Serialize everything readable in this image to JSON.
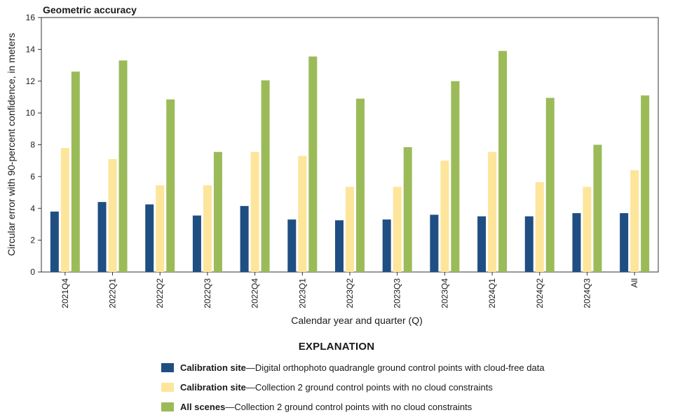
{
  "chart_data": {
    "type": "bar",
    "title": "Geometric accuracy",
    "xlabel": "Calendar year and quarter (Q)",
    "ylabel": "Circular error with 90-percent confidence, in meters",
    "ylim": [
      0,
      16
    ],
    "yticks": [
      "0",
      "2",
      "4",
      "6",
      "8",
      "10",
      "12",
      "14",
      "16"
    ],
    "categories": [
      "2021Q4",
      "2022Q1",
      "2022Q2",
      "2022Q3",
      "2022Q4",
      "2023Q1",
      "2023Q2",
      "2023Q3",
      "2023Q4",
      "2024Q1",
      "2024Q2",
      "2024Q3",
      "All"
    ],
    "series": [
      {
        "name": "Calibration site—Digital orthophoto quadrangle ground control points with cloud-free data",
        "color": "#1f4e82",
        "values": [
          3.8,
          4.4,
          4.25,
          3.55,
          4.15,
          3.3,
          3.25,
          3.3,
          3.6,
          3.5,
          3.5,
          3.7,
          3.7
        ]
      },
      {
        "name": "Calibration site—Collection 2 ground control points with no cloud constraints",
        "color": "#fde59b",
        "values": [
          7.8,
          7.1,
          5.45,
          5.45,
          7.55,
          7.3,
          5.35,
          5.35,
          7.0,
          7.55,
          5.65,
          5.35,
          6.4
        ]
      },
      {
        "name": "All scenes—Collection 2 ground control points with no cloud constraints",
        "color": "#9bbb59",
        "values": [
          12.6,
          13.3,
          10.85,
          7.55,
          12.05,
          13.55,
          10.9,
          7.85,
          12.0,
          13.9,
          10.95,
          8.0,
          11.1
        ]
      }
    ]
  },
  "legend": {
    "title": "EXPLANATION",
    "items": [
      {
        "bold": "Calibration site",
        "text": "—Digital orthophoto quadrangle ground control points with cloud-free data",
        "color": "#1f4e82"
      },
      {
        "bold": "Calibration site",
        "text": "—Collection 2 ground control points with no cloud constraints",
        "color": "#fde59b"
      },
      {
        "bold": "All scenes",
        "text": "—Collection 2 ground control points with no cloud constraints",
        "color": "#9bbb59"
      }
    ]
  }
}
